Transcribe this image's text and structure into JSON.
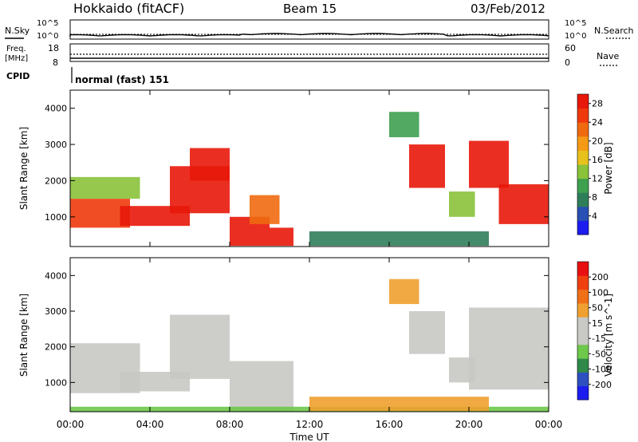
{
  "header": {
    "station": "Hokkaido (fitACF)",
    "beam": "Beam 15",
    "date": "03/Feb/2012"
  },
  "top_panels": {
    "nsky_label": "N.Sky",
    "nsearch_label": "N.Search",
    "freq_label": "Freq.",
    "freq_unit": "[MHz]",
    "nave_label": "Nave",
    "cpid_label": "CPID",
    "cpid_text": "normal (fast) 151",
    "count_ticks": [
      "10^5",
      "10^0"
    ],
    "freq_ticks": [
      "18",
      "8"
    ],
    "nave_ticks": [
      "60",
      "0"
    ]
  },
  "colors": {
    "power_scale": [
      "#1c1cf0",
      "#284fb4",
      "#2f7e5a",
      "#3fa050",
      "#8ac23a",
      "#e8c21c",
      "#f59a16",
      "#f06a10",
      "#f03a0c",
      "#e8180a"
    ],
    "velocity_scale": [
      "#1c1cf0",
      "#2e50c0",
      "#2f8a4a",
      "#6ec84a",
      "#c8c8c4",
      "#c8c8c4",
      "#f0a030",
      "#f07018",
      "#f04010",
      "#e81010"
    ],
    "ground_scatter": "#c8c8c4"
  },
  "chart_data": [
    {
      "type": "heatmap",
      "ylabel": "Slant Range [km]",
      "xlabel": "Time UT",
      "colorbar_label": "Power [dB]",
      "colorbar_ticks": [
        "4",
        "8",
        "12",
        "16",
        "20",
        "24",
        "28"
      ],
      "colorbar_range": [
        0,
        30
      ],
      "xlim_hours": [
        0,
        24
      ],
      "ylim_km": [
        180,
        4500
      ],
      "y_ticks": [
        "1000",
        "2000",
        "3000",
        "4000"
      ],
      "x_ticks": [
        "00:00",
        "04:00",
        "08:00",
        "12:00",
        "16:00",
        "20:00",
        "00:00"
      ],
      "regions": [
        {
          "t": [
            0.0,
            3.0
          ],
          "r": [
            700,
            1500
          ],
          "value": 24
        },
        {
          "t": [
            0.0,
            3.5
          ],
          "r": [
            1500,
            2100
          ],
          "value": 12
        },
        {
          "t": [
            2.5,
            6.0
          ],
          "r": [
            750,
            1300
          ],
          "value": 28
        },
        {
          "t": [
            5.0,
            8.0
          ],
          "r": [
            1100,
            2400
          ],
          "value": 28
        },
        {
          "t": [
            6.0,
            8.0
          ],
          "r": [
            2000,
            2900
          ],
          "value": 28
        },
        {
          "t": [
            8.0,
            10.0
          ],
          "r": [
            200,
            1000
          ],
          "value": 28
        },
        {
          "t": [
            9.0,
            10.5
          ],
          "r": [
            800,
            1600
          ],
          "value": 22
        },
        {
          "t": [
            10.0,
            11.2
          ],
          "r": [
            200,
            700
          ],
          "value": 28
        },
        {
          "t": [
            16.0,
            17.5
          ],
          "r": [
            3200,
            3900
          ],
          "value": 10
        },
        {
          "t": [
            17.0,
            18.8
          ],
          "r": [
            1800,
            3000
          ],
          "value": 28
        },
        {
          "t": [
            19.0,
            20.3
          ],
          "r": [
            1000,
            1700
          ],
          "value": 12
        },
        {
          "t": [
            20.0,
            22.0
          ],
          "r": [
            1800,
            3100
          ],
          "value": 28
        },
        {
          "t": [
            21.5,
            24.0
          ],
          "r": [
            800,
            1900
          ],
          "value": 28
        },
        {
          "t": [
            12.0,
            21.0
          ],
          "r": [
            200,
            600
          ],
          "value": 8
        }
      ]
    },
    {
      "type": "heatmap",
      "ylabel": "Slant Range [km]",
      "xlabel": "Time UT",
      "colorbar_label": "Velocity [m s^-1]",
      "colorbar_ticks": [
        "200",
        "100",
        "50",
        "15",
        "-15",
        "-50",
        "-100",
        "-200"
      ],
      "colorbar_range": [
        -250,
        250
      ],
      "xlim_hours": [
        0,
        24
      ],
      "ylim_km": [
        180,
        4500
      ],
      "y_ticks": [
        "1000",
        "2000",
        "3000",
        "4000"
      ],
      "x_ticks": [
        "00:00",
        "04:00",
        "08:00",
        "12:00",
        "16:00",
        "20:00",
        "00:00"
      ],
      "regions": [
        {
          "t": [
            0.0,
            3.5
          ],
          "r": [
            700,
            2100
          ],
          "value": 0
        },
        {
          "t": [
            2.5,
            6.0
          ],
          "r": [
            750,
            1300
          ],
          "value": 0
        },
        {
          "t": [
            5.0,
            8.0
          ],
          "r": [
            1100,
            2900
          ],
          "value": 0
        },
        {
          "t": [
            8.0,
            11.2
          ],
          "r": [
            200,
            1600
          ],
          "value": 0
        },
        {
          "t": [
            16.0,
            17.5
          ],
          "r": [
            3200,
            3900
          ],
          "value": 60
        },
        {
          "t": [
            17.0,
            18.8
          ],
          "r": [
            1800,
            3000
          ],
          "value": 0
        },
        {
          "t": [
            19.0,
            20.3
          ],
          "r": [
            1000,
            1700
          ],
          "value": 0
        },
        {
          "t": [
            20.0,
            24.0
          ],
          "r": [
            800,
            3100
          ],
          "value": 0
        },
        {
          "t": [
            0.0,
            24.0
          ],
          "r": [
            180,
            320
          ],
          "value": -60
        },
        {
          "t": [
            12.0,
            21.0
          ],
          "r": [
            200,
            600
          ],
          "value": 60
        }
      ]
    }
  ]
}
